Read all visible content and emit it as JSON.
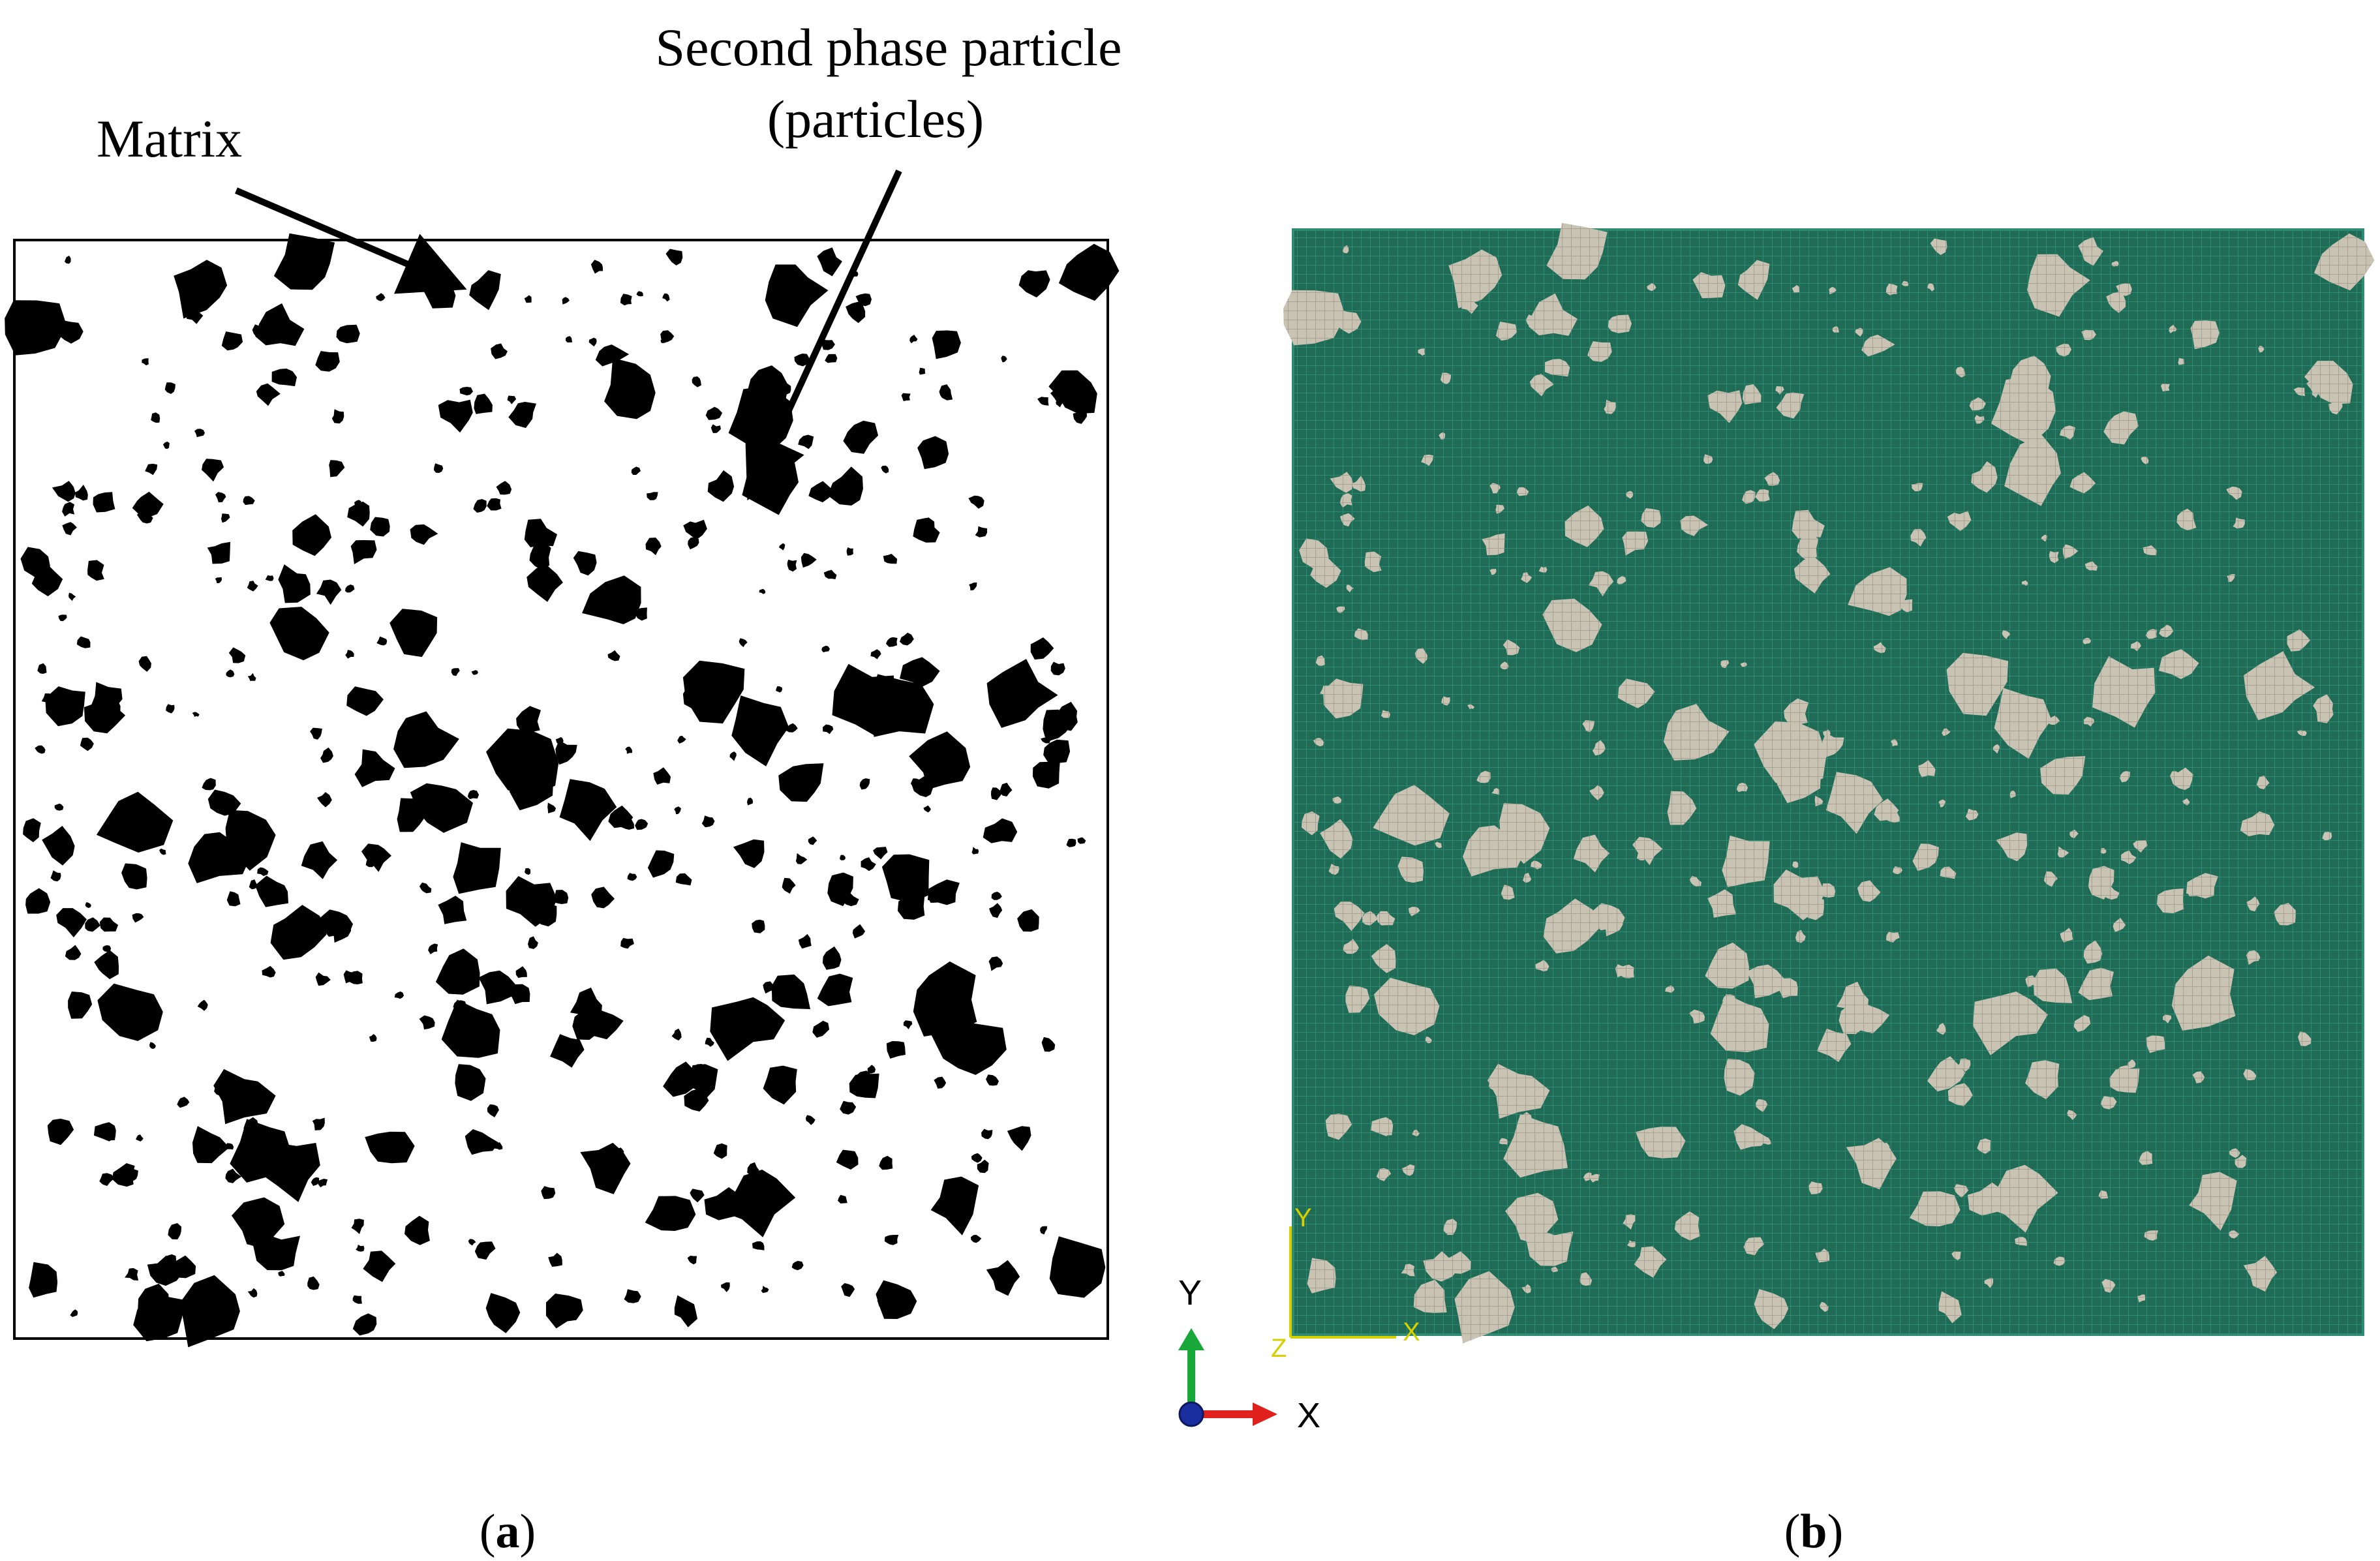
{
  "annotations": {
    "matrix_label": "Matrix",
    "particle_label_line1": "Second phase particle",
    "particle_label_line2": "(particles)"
  },
  "panels": {
    "a": {
      "caption_open": "(",
      "caption_letter": "a",
      "caption_close": ")"
    },
    "b": {
      "caption_open": "(",
      "caption_letter": "b",
      "caption_close": ")"
    }
  },
  "triad": {
    "y_label": "Y",
    "x_label": "X"
  },
  "mesh_axes": {
    "y_label": "Y",
    "x_label": "X",
    "z_label": "Z"
  },
  "colors": {
    "matrix_binary": "#ffffff",
    "particle_binary": "#000000",
    "matrix_mesh": "#1f6b55",
    "particle_mesh": "#c9c3b4",
    "mesh_line": "#2e8a70",
    "triad_x": "#e0201c",
    "triad_y": "#18a83a",
    "triad_z": "#1a2ea0",
    "mesh_axes": "#d6d000"
  },
  "icons": [
    "arrow-pointer-icon",
    "coordinate-triad-icon"
  ]
}
